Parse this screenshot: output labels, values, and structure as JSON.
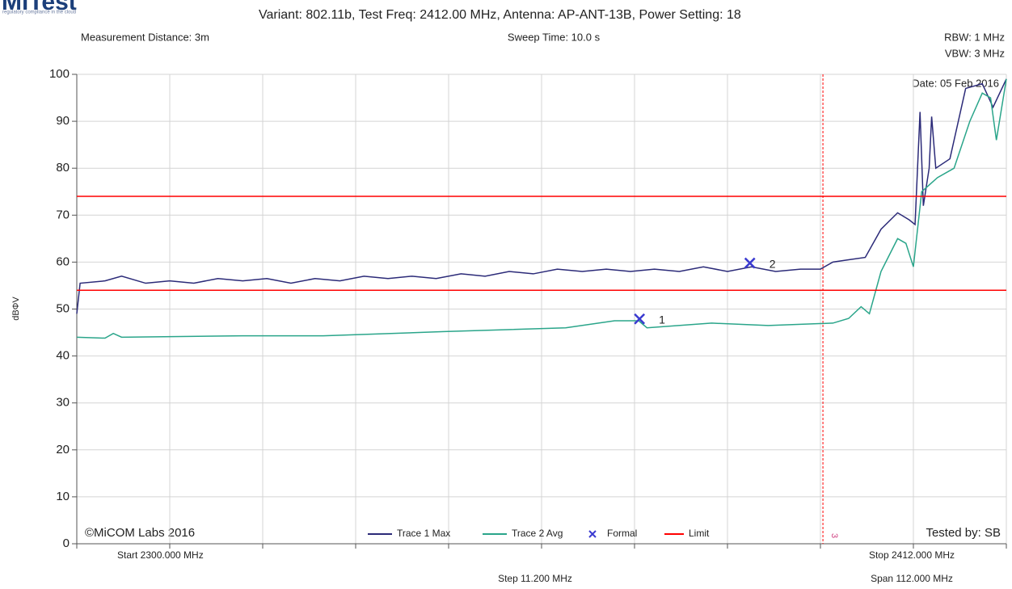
{
  "logo": {
    "name": "MiTest",
    "tagline": "regulatory compliance in the cloud"
  },
  "chart_data": {
    "type": "line",
    "title": "Variant: 802.11b, Test Freq: 2412.00 MHz, Antenna: AP-ANT-13B, Power Setting: 18",
    "measurement_distance": "Measurement Distance: 3m",
    "sweep_time": "Sweep Time: 10.0 s",
    "rbw": "RBW: 1 MHz",
    "vbw": "VBW: 3 MHz",
    "date": "Date: 05 Feb 2016",
    "copyright": "©MiCOM Labs 2016",
    "tested_by": "Tested by: SB",
    "start": "Start 2300.000 MHz",
    "stop": "Stop 2412.000 MHz",
    "step": "Step 11.200 MHz",
    "span": "Span 112.000 MHz",
    "y_label": "dBΦV",
    "xlim": [
      2300,
      2412
    ],
    "ylim": [
      0,
      100
    ],
    "yticks": [
      0,
      10,
      20,
      30,
      40,
      50,
      60,
      70,
      80,
      90,
      100
    ],
    "xticks": [
      2300,
      2311.2,
      2322.4,
      2333.6,
      2344.8,
      2356,
      2367.2,
      2378.4,
      2389.6,
      2400.8,
      2412
    ],
    "grid": true,
    "series": [
      {
        "name": "Trace 1 Max",
        "color": "#2b2a78",
        "x": [
          2300,
          2300.4,
          2303.4,
          2305.4,
          2308.3,
          2311.2,
          2314.1,
          2317.0,
          2320.0,
          2322.9,
          2325.8,
          2328.7,
          2331.7,
          2334.6,
          2337.5,
          2340.4,
          2343.3,
          2346.3,
          2349.2,
          2352.1,
          2355.0,
          2357.9,
          2360.9,
          2363.8,
          2366.7,
          2369.6,
          2372.6,
          2375.5,
          2378.4,
          2381.3,
          2384.2,
          2387.2,
          2389.6,
          2391.1,
          2393.0,
          2395.0,
          2396.9,
          2398.9,
          2400.3,
          2401.0,
          2401.6,
          2402.0,
          2402.7,
          2403.0,
          2403.5,
          2405.2,
          2407.1,
          2409.1,
          2410.4,
          2412.0
        ],
        "values": [
          49,
          55.5,
          56,
          57,
          55.5,
          56,
          55.5,
          56.5,
          56,
          56.5,
          55.5,
          56.5,
          56,
          57,
          56.5,
          57,
          56.5,
          57.5,
          57,
          58,
          57.5,
          58.5,
          58,
          58.5,
          58,
          58.5,
          58,
          59,
          58,
          59,
          58,
          58.5,
          58.5,
          60,
          60.5,
          61,
          67,
          70.5,
          69,
          68,
          92,
          72,
          80,
          91,
          80,
          82,
          97,
          98,
          93,
          99
        ]
      },
      {
        "name": "Trace 2 Avg",
        "color": "#2aa58a",
        "x": [
          2300,
          2303.4,
          2304.4,
          2305.4,
          2319.9,
          2329.7,
          2344.3,
          2358.9,
          2364.8,
          2367.7,
          2368.7,
          2376.5,
          2383.3,
          2391.1,
          2393.0,
          2394.5,
          2395.5,
          2396.9,
          2398.9,
          2399.9,
          2400.8,
          2401.8,
          2403.7,
          2405.7,
          2407.6,
          2409.1,
          2410.1,
          2410.8,
          2412.0
        ],
        "values": [
          44,
          43.8,
          44.8,
          44,
          44.3,
          44.3,
          45.2,
          46,
          47.5,
          47.5,
          46,
          47,
          46.5,
          47,
          48,
          50.5,
          49,
          58,
          65,
          64,
          59,
          75,
          78,
          80,
          90,
          96,
          95,
          86,
          99
        ]
      },
      {
        "name": "Formal",
        "color": "#3a3ad0",
        "kind": "marker",
        "x": [
          2367.8,
          2381.1
        ],
        "values": [
          47.9,
          59.8
        ],
        "labels": [
          "1",
          "2"
        ]
      },
      {
        "name": "Limit",
        "color": "#ff0000",
        "kind": "hline",
        "values": [
          74,
          54
        ]
      }
    ],
    "vline": {
      "x": 2389.9,
      "label": "3",
      "color": "#ff0000"
    }
  }
}
